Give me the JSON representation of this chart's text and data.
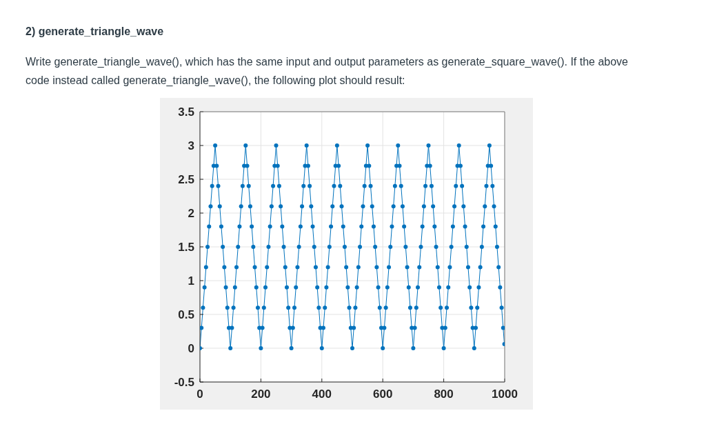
{
  "chart_data": {
    "type": "line",
    "title": "2) generate_triangle_wave",
    "subtitle": "Write generate_triangle_wave(), which has the same input and output parameters as generate_square_wave(). If the above code instead called generate_triangle_wave(), the following plot should result:",
    "x": [
      0,
      5,
      10,
      15,
      20,
      25,
      30,
      35,
      40,
      45,
      50,
      55,
      60,
      65,
      70,
      75,
      80,
      85,
      90,
      95,
      100,
      105,
      110,
      115,
      120,
      125,
      130,
      135,
      140,
      145,
      150,
      155,
      160,
      165,
      170,
      175,
      180,
      185,
      190,
      195,
      200,
      205,
      210,
      215,
      220,
      225,
      230,
      235,
      240,
      245,
      250,
      255,
      260,
      265,
      270,
      275,
      280,
      285,
      290,
      295,
      300,
      305,
      310,
      315,
      320,
      325,
      330,
      335,
      340,
      345,
      350,
      355,
      360,
      365,
      370,
      375,
      380,
      385,
      390,
      395,
      400,
      405,
      410,
      415,
      420,
      425,
      430,
      435,
      440,
      445,
      450,
      455,
      460,
      465,
      470,
      475,
      480,
      485,
      490,
      495,
      500,
      505,
      510,
      515,
      520,
      525,
      530,
      535,
      540,
      545,
      550,
      555,
      560,
      565,
      570,
      575,
      580,
      585,
      590,
      595,
      600,
      605,
      610,
      615,
      620,
      625,
      630,
      635,
      640,
      645,
      650,
      655,
      660,
      665,
      670,
      675,
      680,
      685,
      690,
      695,
      700,
      705,
      710,
      715,
      720,
      725,
      730,
      735,
      740,
      745,
      750,
      755,
      760,
      765,
      770,
      775,
      780,
      785,
      790,
      795,
      800,
      805,
      810,
      815,
      820,
      825,
      830,
      835,
      840,
      845,
      850,
      855,
      860,
      865,
      870,
      875,
      880,
      885,
      890,
      895,
      900,
      905,
      910,
      915,
      920,
      925,
      930,
      935,
      940,
      945,
      950,
      955,
      960,
      965,
      970,
      975,
      980,
      985,
      990,
      995,
      999
    ],
    "series": [
      {
        "color": "#0072bd",
        "values": [
          0,
          0.3,
          0.6,
          0.9,
          1.2,
          1.5,
          1.8,
          2.1,
          2.4,
          2.7,
          3,
          2.7,
          2.4,
          2.1,
          1.8,
          1.5,
          1.2,
          0.9,
          0.6,
          0.3,
          0,
          0.3,
          0.6,
          0.9,
          1.2,
          1.5,
          1.8,
          2.1,
          2.4,
          2.7,
          3,
          2.7,
          2.4,
          2.1,
          1.8,
          1.5,
          1.2,
          0.9,
          0.6,
          0.3,
          0,
          0.3,
          0.6,
          0.9,
          1.2,
          1.5,
          1.8,
          2.1,
          2.4,
          2.7,
          3,
          2.7,
          2.4,
          2.1,
          1.8,
          1.5,
          1.2,
          0.9,
          0.6,
          0.3,
          0,
          0.3,
          0.6,
          0.9,
          1.2,
          1.5,
          1.8,
          2.1,
          2.4,
          2.7,
          3,
          2.7,
          2.4,
          2.1,
          1.8,
          1.5,
          1.2,
          0.9,
          0.6,
          0.3,
          0,
          0.3,
          0.6,
          0.9,
          1.2,
          1.5,
          1.8,
          2.1,
          2.4,
          2.7,
          3,
          2.7,
          2.4,
          2.1,
          1.8,
          1.5,
          1.2,
          0.9,
          0.6,
          0.3,
          0,
          0.3,
          0.6,
          0.9,
          1.2,
          1.5,
          1.8,
          2.1,
          2.4,
          2.7,
          3,
          2.7,
          2.4,
          2.1,
          1.8,
          1.5,
          1.2,
          0.9,
          0.6,
          0.3,
          0,
          0.3,
          0.6,
          0.9,
          1.2,
          1.5,
          1.8,
          2.1,
          2.4,
          2.7,
          3,
          2.7,
          2.4,
          2.1,
          1.8,
          1.5,
          1.2,
          0.9,
          0.6,
          0.3,
          0,
          0.3,
          0.6,
          0.9,
          1.2,
          1.5,
          1.8,
          2.1,
          2.4,
          2.7,
          3,
          2.7,
          2.4,
          2.1,
          1.8,
          1.5,
          1.2,
          0.9,
          0.6,
          0.3,
          0,
          0.3,
          0.6,
          0.9,
          1.2,
          1.5,
          1.8,
          2.1,
          2.4,
          2.7,
          3,
          2.7,
          2.4,
          2.1,
          1.8,
          1.5,
          1.2,
          0.9,
          0.6,
          0.3,
          0,
          0.3,
          0.6,
          0.9,
          1.2,
          1.5,
          1.8,
          2.1,
          2.4,
          2.7,
          3,
          2.7,
          2.4,
          2.1,
          1.8,
          1.5,
          1.2,
          0.9,
          0.6,
          0.3,
          0.06
        ]
      }
    ],
    "xlim": [
      0,
      1000
    ],
    "ylim": [
      -0.5,
      3.5
    ],
    "xticks": [
      0,
      200,
      400,
      600,
      800,
      1000
    ],
    "yticks": [
      -0.5,
      0,
      0.5,
      1,
      1.5,
      2,
      2.5,
      3,
      3.5
    ],
    "grid": true,
    "marker": "circle"
  }
}
